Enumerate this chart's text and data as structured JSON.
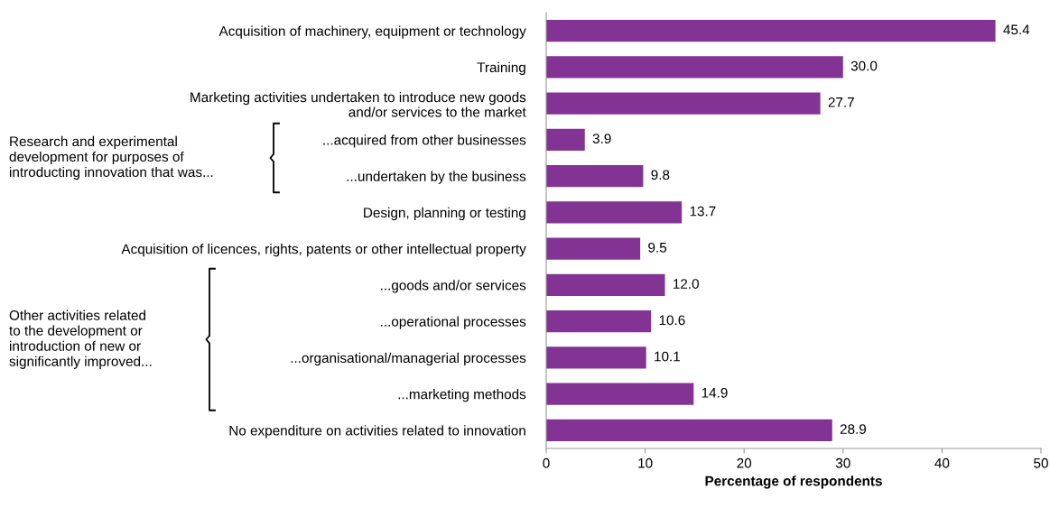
{
  "chart_data": {
    "type": "bar",
    "orientation": "horizontal",
    "xlabel": "Percentage of respondents",
    "categories": [
      "Acquisition of machinery, equipment or technology",
      "Training",
      "Marketing activities undertaken to introduce new goods\nand/or services to the market",
      "...acquired from other businesses",
      "...undertaken by the business",
      "Design, planning or testing",
      "Acquisition of licences, rights, patents or other intellectual property",
      "...goods and/or services",
      "...operational processes",
      "...organisational/managerial processes",
      "...marketing methods",
      "No expenditure on activities related to innovation"
    ],
    "values": [
      45.4,
      30.0,
      27.7,
      3.9,
      9.8,
      13.7,
      9.5,
      12.0,
      10.6,
      10.1,
      14.9,
      28.9
    ],
    "value_labels": [
      "45.4",
      "30.0",
      "27.7",
      "3.9",
      "9.8",
      "13.7",
      "9.5",
      "12.0",
      "10.6",
      "10.1",
      "14.9",
      "28.9"
    ],
    "color": "#833393",
    "xlim": [
      0,
      50
    ],
    "xticks": [
      0,
      10,
      20,
      30,
      40,
      50
    ],
    "annotations": [
      "Research and experimental\ndevelopment for purposes of\nintroducting innovation that was...",
      "Other activities related\nto the development or\nintroduction of new or\nsignificantly improved..."
    ],
    "grid": false,
    "legend": false
  }
}
